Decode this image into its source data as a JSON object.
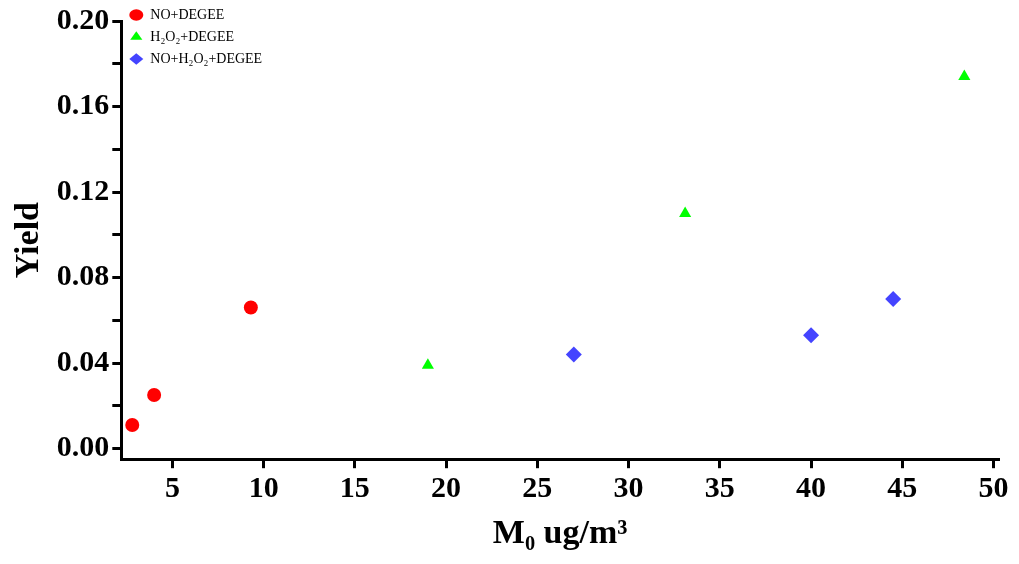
{
  "chart_data": {
    "type": "scatter",
    "xlabel": "M₀ ug/m³",
    "ylabel": "Yield",
    "xlim": [
      2.2,
      50.3
    ],
    "xticks": [
      5,
      10,
      15,
      20,
      25,
      30,
      35,
      40,
      45,
      50
    ],
    "ylim": [
      -0.005,
      0.2
    ],
    "yticks": [
      {
        "value": 0,
        "label": "0.00"
      },
      {
        "value": 0.02,
        "label": null
      },
      {
        "value": 0.04,
        "label": "0.04"
      },
      {
        "value": 0.06,
        "label": null
      },
      {
        "value": 0.08,
        "label": "0.08"
      },
      {
        "value": 0.1,
        "label": null
      },
      {
        "value": 0.12,
        "label": "0.12"
      },
      {
        "value": 0.14,
        "label": null
      },
      {
        "value": 0.16,
        "label": "0.16"
      },
      {
        "value": 0.18,
        "label": null
      },
      {
        "value": 0.2,
        "label": "0.20"
      }
    ],
    "grid": false,
    "legend": "top left",
    "series": [
      {
        "name": "NO+DEGEE",
        "color": "#ff0000",
        "marker": "circle",
        "x": [
          2.8,
          4.0,
          9.3
        ],
        "values": [
          0.011,
          0.025,
          0.066
        ]
      },
      {
        "name": "H₂O₂+DEGEE",
        "color": "#00ff00",
        "marker": "triangle",
        "x": [
          19.0,
          33.1,
          48.4
        ],
        "values": [
          0.039,
          0.11,
          0.174
        ]
      },
      {
        "name": "NO+H₂O₂+DEGEE",
        "color": "#4444ff",
        "marker": "diamond",
        "x": [
          27.0,
          40.0,
          44.5
        ],
        "values": [
          0.044,
          0.053,
          0.07
        ]
      }
    ]
  }
}
